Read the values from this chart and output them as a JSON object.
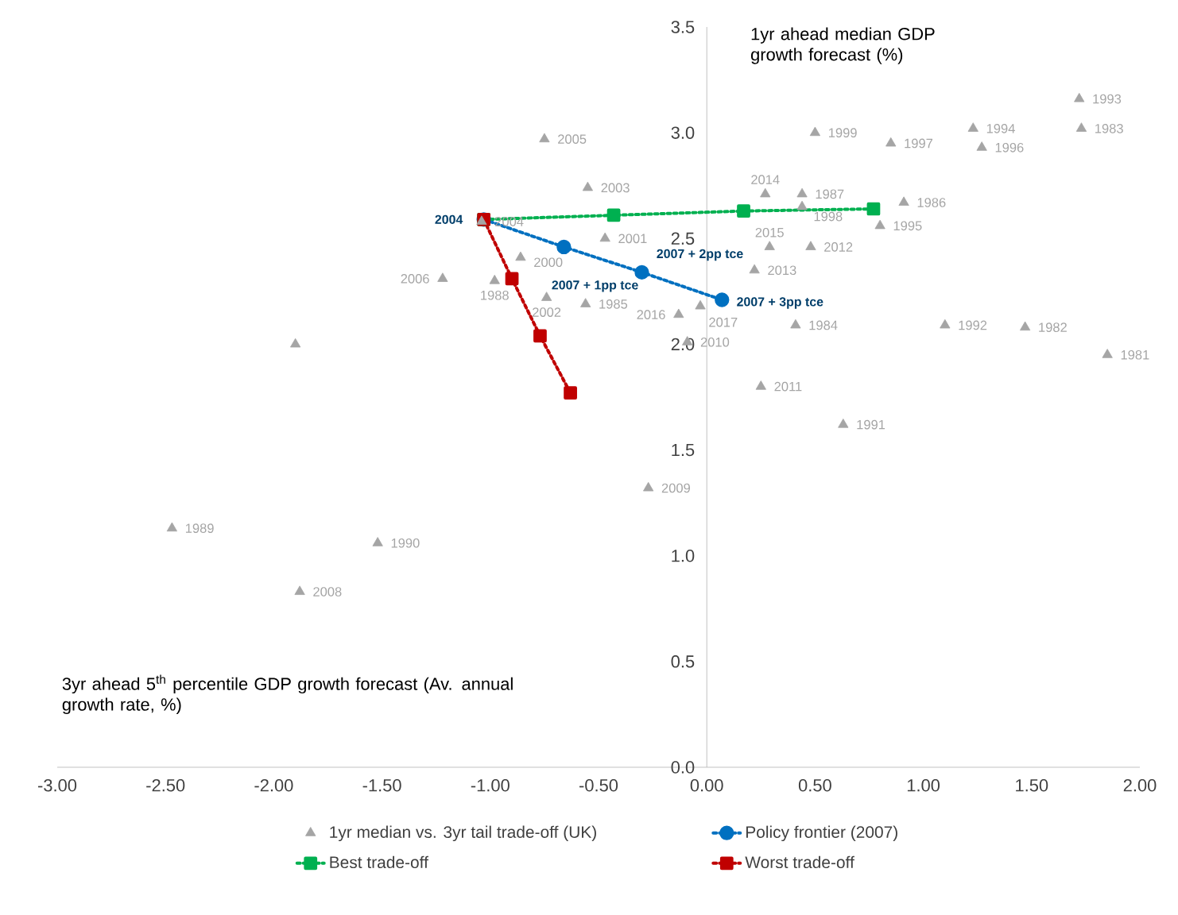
{
  "chart_data": {
    "type": "scatter",
    "xlabel": "3yr ahead 5$^{th}$ percentile GDP growth forecast (Av. annual growth  rate, %)",
    "ylabel": "1yr ahead median GDP growth forecast (%)",
    "xlim": [
      -3,
      2
    ],
    "ylim": [
      0,
      3.5
    ],
    "xticks": [
      {
        "value": -3,
        "label": "-3.00"
      },
      {
        "value": -2.5,
        "label": "-2.50"
      },
      {
        "value": -2,
        "label": "-2.00"
      },
      {
        "value": -1.5,
        "label": "-1.50"
      },
      {
        "value": -1,
        "label": "-1.00"
      },
      {
        "value": -0.5,
        "label": "-0.50"
      },
      {
        "value": 0,
        "label": "0.00"
      },
      {
        "value": 0.5,
        "label": "0.50"
      },
      {
        "value": 1,
        "label": "1.00"
      },
      {
        "value": 1.5,
        "label": "1.50"
      },
      {
        "value": 2,
        "label": "2.00"
      }
    ],
    "yticks": [
      {
        "value": 0,
        "label": "0.0"
      },
      {
        "value": 0.5,
        "label": "0.5"
      },
      {
        "value": 1,
        "label": "1.0"
      },
      {
        "value": 1.5,
        "label": "1.5"
      },
      {
        "value": 2,
        "label": "2.0"
      },
      {
        "value": 2.5,
        "label": "2.5"
      },
      {
        "value": 3,
        "label": "3.0"
      },
      {
        "value": 3.5,
        "label": "3.5"
      }
    ],
    "grid": false,
    "legend": "bottom",
    "series": [
      {
        "name": "1yr median vs. 3yr tail trade-off (UK)",
        "type": "scatter",
        "marker": "triangle",
        "color": "#a5a5a5",
        "x": [
          1.85,
          1.47,
          1.73,
          0.41,
          -0.56,
          0.91,
          0.44,
          -0.98,
          -2.47,
          -1.52,
          0.63,
          1.1,
          1.72,
          1.23,
          0.8,
          1.27,
          0.85,
          0.44,
          0.5,
          -0.86,
          -0.47,
          -0.74,
          -0.55,
          -1.04,
          -0.75,
          -1.22,
          -1.9,
          -1.88,
          -0.27,
          -0.09,
          0.25,
          0.48,
          0.22,
          0.27,
          0.29,
          -0.13,
          -0.03
        ],
        "values": [
          1.95,
          2.08,
          3.02,
          2.09,
          2.19,
          2.67,
          2.71,
          2.3,
          1.13,
          1.06,
          1.62,
          2.09,
          3.16,
          3.02,
          2.56,
          2.93,
          2.95,
          2.65,
          3.0,
          2.41,
          2.5,
          2.22,
          2.74,
          2.58,
          2.97,
          2.31,
          2.0,
          0.83,
          1.32,
          2.01,
          1.8,
          2.46,
          2.35,
          2.71,
          2.46,
          2.14,
          2.18
        ]
      },
      {
        "name": "Policy frontier (2007)",
        "type": "line",
        "marker": "circle",
        "line_style": "dotted",
        "color": "#0070c0",
        "x": [
          -1.03,
          -0.66,
          -0.3,
          0.07
        ],
        "values": [
          2.59,
          2.46,
          2.34,
          2.21
        ]
      },
      {
        "name": "Best trade-off",
        "type": "line",
        "marker": "square",
        "line_style": "dotted",
        "color": "#00b050",
        "x": [
          -1.03,
          -0.43,
          0.17,
          0.77
        ],
        "values": [
          2.59,
          2.61,
          2.63,
          2.64
        ]
      },
      {
        "name": "Worst trade-off",
        "type": "line",
        "marker": "square",
        "line_style": "dotted",
        "color": "#c00000",
        "x": [
          -1.03,
          -0.9,
          -0.77,
          -0.63
        ],
        "values": [
          2.59,
          2.31,
          2.04,
          1.77
        ]
      }
    ],
    "annotations": [
      {
        "text": "1981",
        "x": 1.85,
        "y": 1.95
      },
      {
        "text": "1982",
        "x": 1.47,
        "y": 2.08
      },
      {
        "text": "1983",
        "x": 1.73,
        "y": 3.02
      },
      {
        "text": "1984",
        "x": 0.41,
        "y": 2.09
      },
      {
        "text": "1985",
        "x": -0.56,
        "y": 2.19
      },
      {
        "text": "1986",
        "x": 0.91,
        "y": 2.67
      },
      {
        "text": "1987",
        "x": 0.44,
        "y": 2.71
      },
      {
        "text": "1988",
        "x": -0.98,
        "y": 2.3
      },
      {
        "text": "1989",
        "x": -2.47,
        "y": 1.13
      },
      {
        "text": "1990",
        "x": -1.52,
        "y": 1.06
      },
      {
        "text": "1991",
        "x": 0.63,
        "y": 1.62
      },
      {
        "text": "1992",
        "x": 1.1,
        "y": 2.09
      },
      {
        "text": "1993",
        "x": 1.72,
        "y": 3.16
      },
      {
        "text": "1994",
        "x": 1.23,
        "y": 3.02
      },
      {
        "text": "1995",
        "x": 0.8,
        "y": 2.56
      },
      {
        "text": "1996",
        "x": 1.27,
        "y": 2.93
      },
      {
        "text": "1997",
        "x": 0.85,
        "y": 2.95
      },
      {
        "text": "1998",
        "x": 0.44,
        "y": 2.65
      },
      {
        "text": "1999",
        "x": 0.5,
        "y": 3.0
      },
      {
        "text": "2000",
        "x": -0.86,
        "y": 2.41
      },
      {
        "text": "2001",
        "x": -0.47,
        "y": 2.5
      },
      {
        "text": "2002",
        "x": -0.74,
        "y": 2.22
      },
      {
        "text": "2003",
        "x": -0.55,
        "y": 2.74
      },
      {
        "text": "2004",
        "x": -1.04,
        "y": 2.58
      },
      {
        "text": "2005",
        "x": -0.75,
        "y": 2.97
      },
      {
        "text": "2006",
        "x": -1.22,
        "y": 2.31
      },
      {
        "text": "2008",
        "x": -1.88,
        "y": 0.83
      },
      {
        "text": "2009",
        "x": -0.27,
        "y": 1.32
      },
      {
        "text": "2010",
        "x": -0.09,
        "y": 2.01
      },
      {
        "text": "2011",
        "x": 0.25,
        "y": 1.8
      },
      {
        "text": "2012",
        "x": 0.48,
        "y": 2.46
      },
      {
        "text": "2013",
        "x": 0.22,
        "y": 2.35
      },
      {
        "text": "2014",
        "x": 0.27,
        "y": 2.71
      },
      {
        "text": "2015",
        "x": 0.29,
        "y": 2.46
      },
      {
        "text": "2016",
        "x": -0.13,
        "y": 2.14
      },
      {
        "text": "2017",
        "x": -0.03,
        "y": 2.18
      },
      {
        "text": "2004",
        "x": -1.03,
        "y": 2.59
      },
      {
        "text": "2007 + 1pp tce",
        "x": -0.66,
        "y": 2.46
      },
      {
        "text": "2007 + 2pp tce",
        "x": -0.3,
        "y": 2.34
      },
      {
        "text": "2007 + 3pp tce",
        "x": 0.07,
        "y": 2.21
      }
    ]
  }
}
